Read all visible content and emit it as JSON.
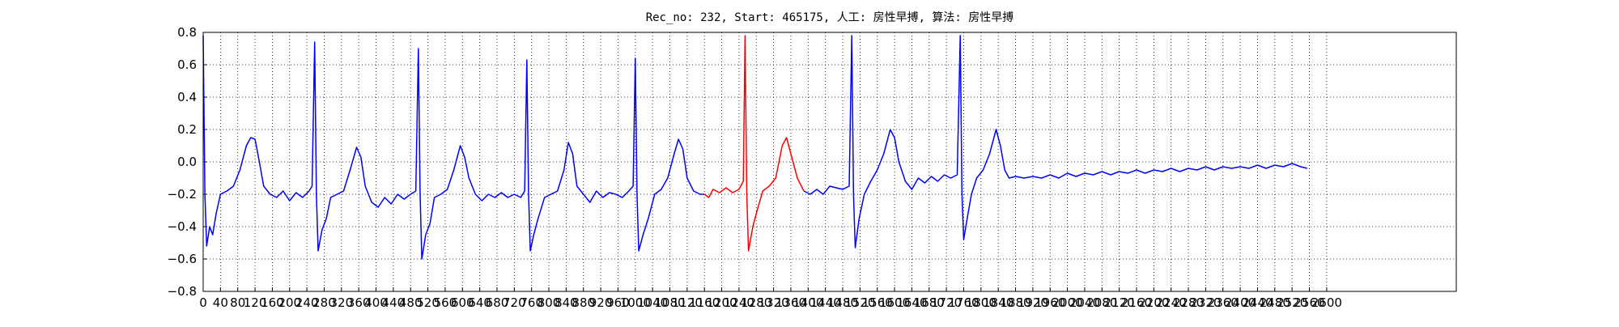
{
  "chart_data": {
    "type": "line",
    "title": "Rec_no: 232, Start: 465175, 人工: 房性早搏, 算法: 房性早搏",
    "grid": true,
    "xlim": [
      0,
      2900
    ],
    "ylim": [
      -0.8,
      0.8
    ],
    "yticks": [
      {
        "value": -0.8,
        "label": "−0.8"
      },
      {
        "value": -0.6,
        "label": "−0.6"
      },
      {
        "value": -0.4,
        "label": "−0.4"
      },
      {
        "value": -0.2,
        "label": "−0.2"
      },
      {
        "value": 0,
        "label": "0.0"
      },
      {
        "value": 0.2,
        "label": "0.2"
      },
      {
        "value": 0.4,
        "label": "0.4"
      },
      {
        "value": 0.6,
        "label": "0.6"
      },
      {
        "value": 0.8,
        "label": "0.8"
      }
    ],
    "xticks": [
      0,
      40,
      80,
      120,
      160,
      200,
      240,
      280,
      320,
      360,
      400,
      440,
      480,
      520,
      560,
      600,
      640,
      680,
      720,
      760,
      800,
      840,
      880,
      920,
      960,
      1000,
      1040,
      1080,
      1120,
      1160,
      1200,
      1240,
      1280,
      1320,
      1360,
      1400,
      1440,
      1480,
      1520,
      1560,
      1600,
      1640,
      1680,
      1720,
      1760,
      1800,
      1840,
      1880,
      1920,
      1960,
      2000,
      2040,
      2080,
      2120,
      2160,
      2200,
      2240,
      2280,
      2320,
      2360,
      2400,
      2440,
      2480,
      2520,
      2560,
      2600
    ],
    "series": [
      {
        "color": "#0000ff",
        "x": [
          0,
          4,
          8,
          15,
          22,
          30,
          40,
          55,
          70,
          85,
          100,
          110,
          120,
          130,
          140,
          155,
          170,
          185,
          200,
          215,
          230,
          245,
          252,
          258,
          262,
          266,
          275,
          285,
          295,
          310,
          325,
          340,
          355,
          365,
          375,
          390,
          405,
          420,
          435,
          450,
          465,
          480,
          492,
          498,
          502,
          506,
          515,
          525,
          535,
          550,
          565,
          580,
          595,
          605,
          615,
          630,
          645,
          660,
          675,
          690,
          705,
          720,
          735,
          744,
          749,
          753,
          757,
          765,
          775,
          790,
          805,
          820,
          835,
          845,
          855,
          865,
          880,
          895,
          910,
          925,
          940,
          955,
          970,
          985,
          995,
          1000,
          1004,
          1008,
          1018,
          1030,
          1045,
          1060,
          1075,
          1090,
          1100,
          1110,
          1120,
          1135,
          1150,
          1160,
          1275,
          1390,
          1405,
          1420,
          1435,
          1450,
          1465,
          1480,
          1495,
          1501,
          1505,
          1509,
          1518,
          1530,
          1545,
          1560,
          1575,
          1590,
          1600,
          1610,
          1625,
          1640,
          1655,
          1670,
          1685,
          1700,
          1715,
          1730,
          1745,
          1752,
          1756,
          1760,
          1768,
          1778,
          1790,
          1805,
          1820,
          1835,
          1845,
          1855,
          1865,
          1880,
          1900,
          1920,
          1940,
          1960,
          1980,
          2000,
          2020,
          2040,
          2060,
          2080,
          2100,
          2120,
          2140,
          2160,
          2180,
          2200,
          2220,
          2240,
          2260,
          2280,
          2300,
          2320,
          2340,
          2360,
          2380,
          2400,
          2420,
          2440,
          2460,
          2480,
          2500,
          2520,
          2540,
          2555
        ],
        "values": [
          0.78,
          -0.2,
          -0.52,
          -0.4,
          -0.45,
          -0.32,
          -0.2,
          -0.18,
          -0.15,
          -0.05,
          0.1,
          0.15,
          0.14,
          0,
          -0.15,
          -0.2,
          -0.22,
          -0.18,
          -0.24,
          -0.19,
          -0.22,
          -0.18,
          -0.15,
          0.74,
          -0.2,
          -0.55,
          -0.42,
          -0.35,
          -0.22,
          -0.2,
          -0.18,
          -0.05,
          0.09,
          0.03,
          -0.15,
          -0.25,
          -0.28,
          -0.22,
          -0.26,
          -0.2,
          -0.23,
          -0.2,
          -0.18,
          0.7,
          -0.2,
          -0.6,
          -0.45,
          -0.38,
          -0.22,
          -0.2,
          -0.17,
          -0.05,
          0.1,
          0.03,
          -0.1,
          -0.2,
          -0.24,
          -0.2,
          -0.22,
          -0.19,
          -0.22,
          -0.2,
          -0.22,
          -0.18,
          0.63,
          -0.2,
          -0.55,
          -0.45,
          -0.35,
          -0.22,
          -0.2,
          -0.18,
          -0.05,
          0.12,
          0.05,
          -0.15,
          -0.2,
          -0.25,
          -0.18,
          -0.22,
          -0.19,
          -0.2,
          -0.22,
          -0.18,
          -0.15,
          0.64,
          -0.2,
          -0.55,
          -0.45,
          -0.35,
          -0.2,
          -0.17,
          -0.1,
          0.05,
          0.14,
          0.08,
          -0.1,
          -0.18,
          -0.2,
          -0.2,
          null,
          -0.18,
          -0.2,
          -0.17,
          -0.2,
          -0.15,
          -0.16,
          -0.17,
          -0.15,
          0.78,
          -0.2,
          -0.53,
          -0.35,
          -0.2,
          -0.12,
          -0.05,
          0.05,
          0.2,
          0.15,
          0,
          -0.12,
          -0.17,
          -0.1,
          -0.13,
          -0.09,
          -0.12,
          -0.08,
          -0.1,
          -0.08,
          0.78,
          -0.2,
          -0.48,
          -0.35,
          -0.2,
          -0.1,
          -0.05,
          0.05,
          0.2,
          0.1,
          -0.05,
          -0.1,
          -0.09,
          -0.1,
          -0.09,
          -0.1,
          -0.08,
          -0.1,
          -0.07,
          -0.09,
          -0.07,
          -0.08,
          -0.06,
          -0.08,
          -0.06,
          -0.07,
          -0.05,
          -0.07,
          -0.05,
          -0.06,
          -0.04,
          -0.06,
          -0.04,
          -0.05,
          -0.03,
          -0.05,
          -0.03,
          -0.04,
          -0.03,
          -0.04,
          -0.02,
          -0.04,
          -0.02,
          -0.03,
          -0.01,
          -0.03,
          -0.04
        ]
      },
      {
        "color": "#ff0000",
        "x": [
          1160,
          1170,
          1180,
          1195,
          1210,
          1225,
          1240,
          1250,
          1254,
          1258,
          1262,
          1272,
          1282,
          1295,
          1310,
          1325,
          1340,
          1350,
          1360,
          1375,
          1390
        ],
        "values": [
          -0.2,
          -0.22,
          -0.17,
          -0.19,
          -0.16,
          -0.19,
          -0.17,
          -0.12,
          0.78,
          -0.2,
          -0.55,
          -0.4,
          -0.3,
          -0.18,
          -0.15,
          -0.1,
          0.1,
          0.15,
          0.05,
          -0.1,
          -0.18
        ]
      }
    ]
  }
}
